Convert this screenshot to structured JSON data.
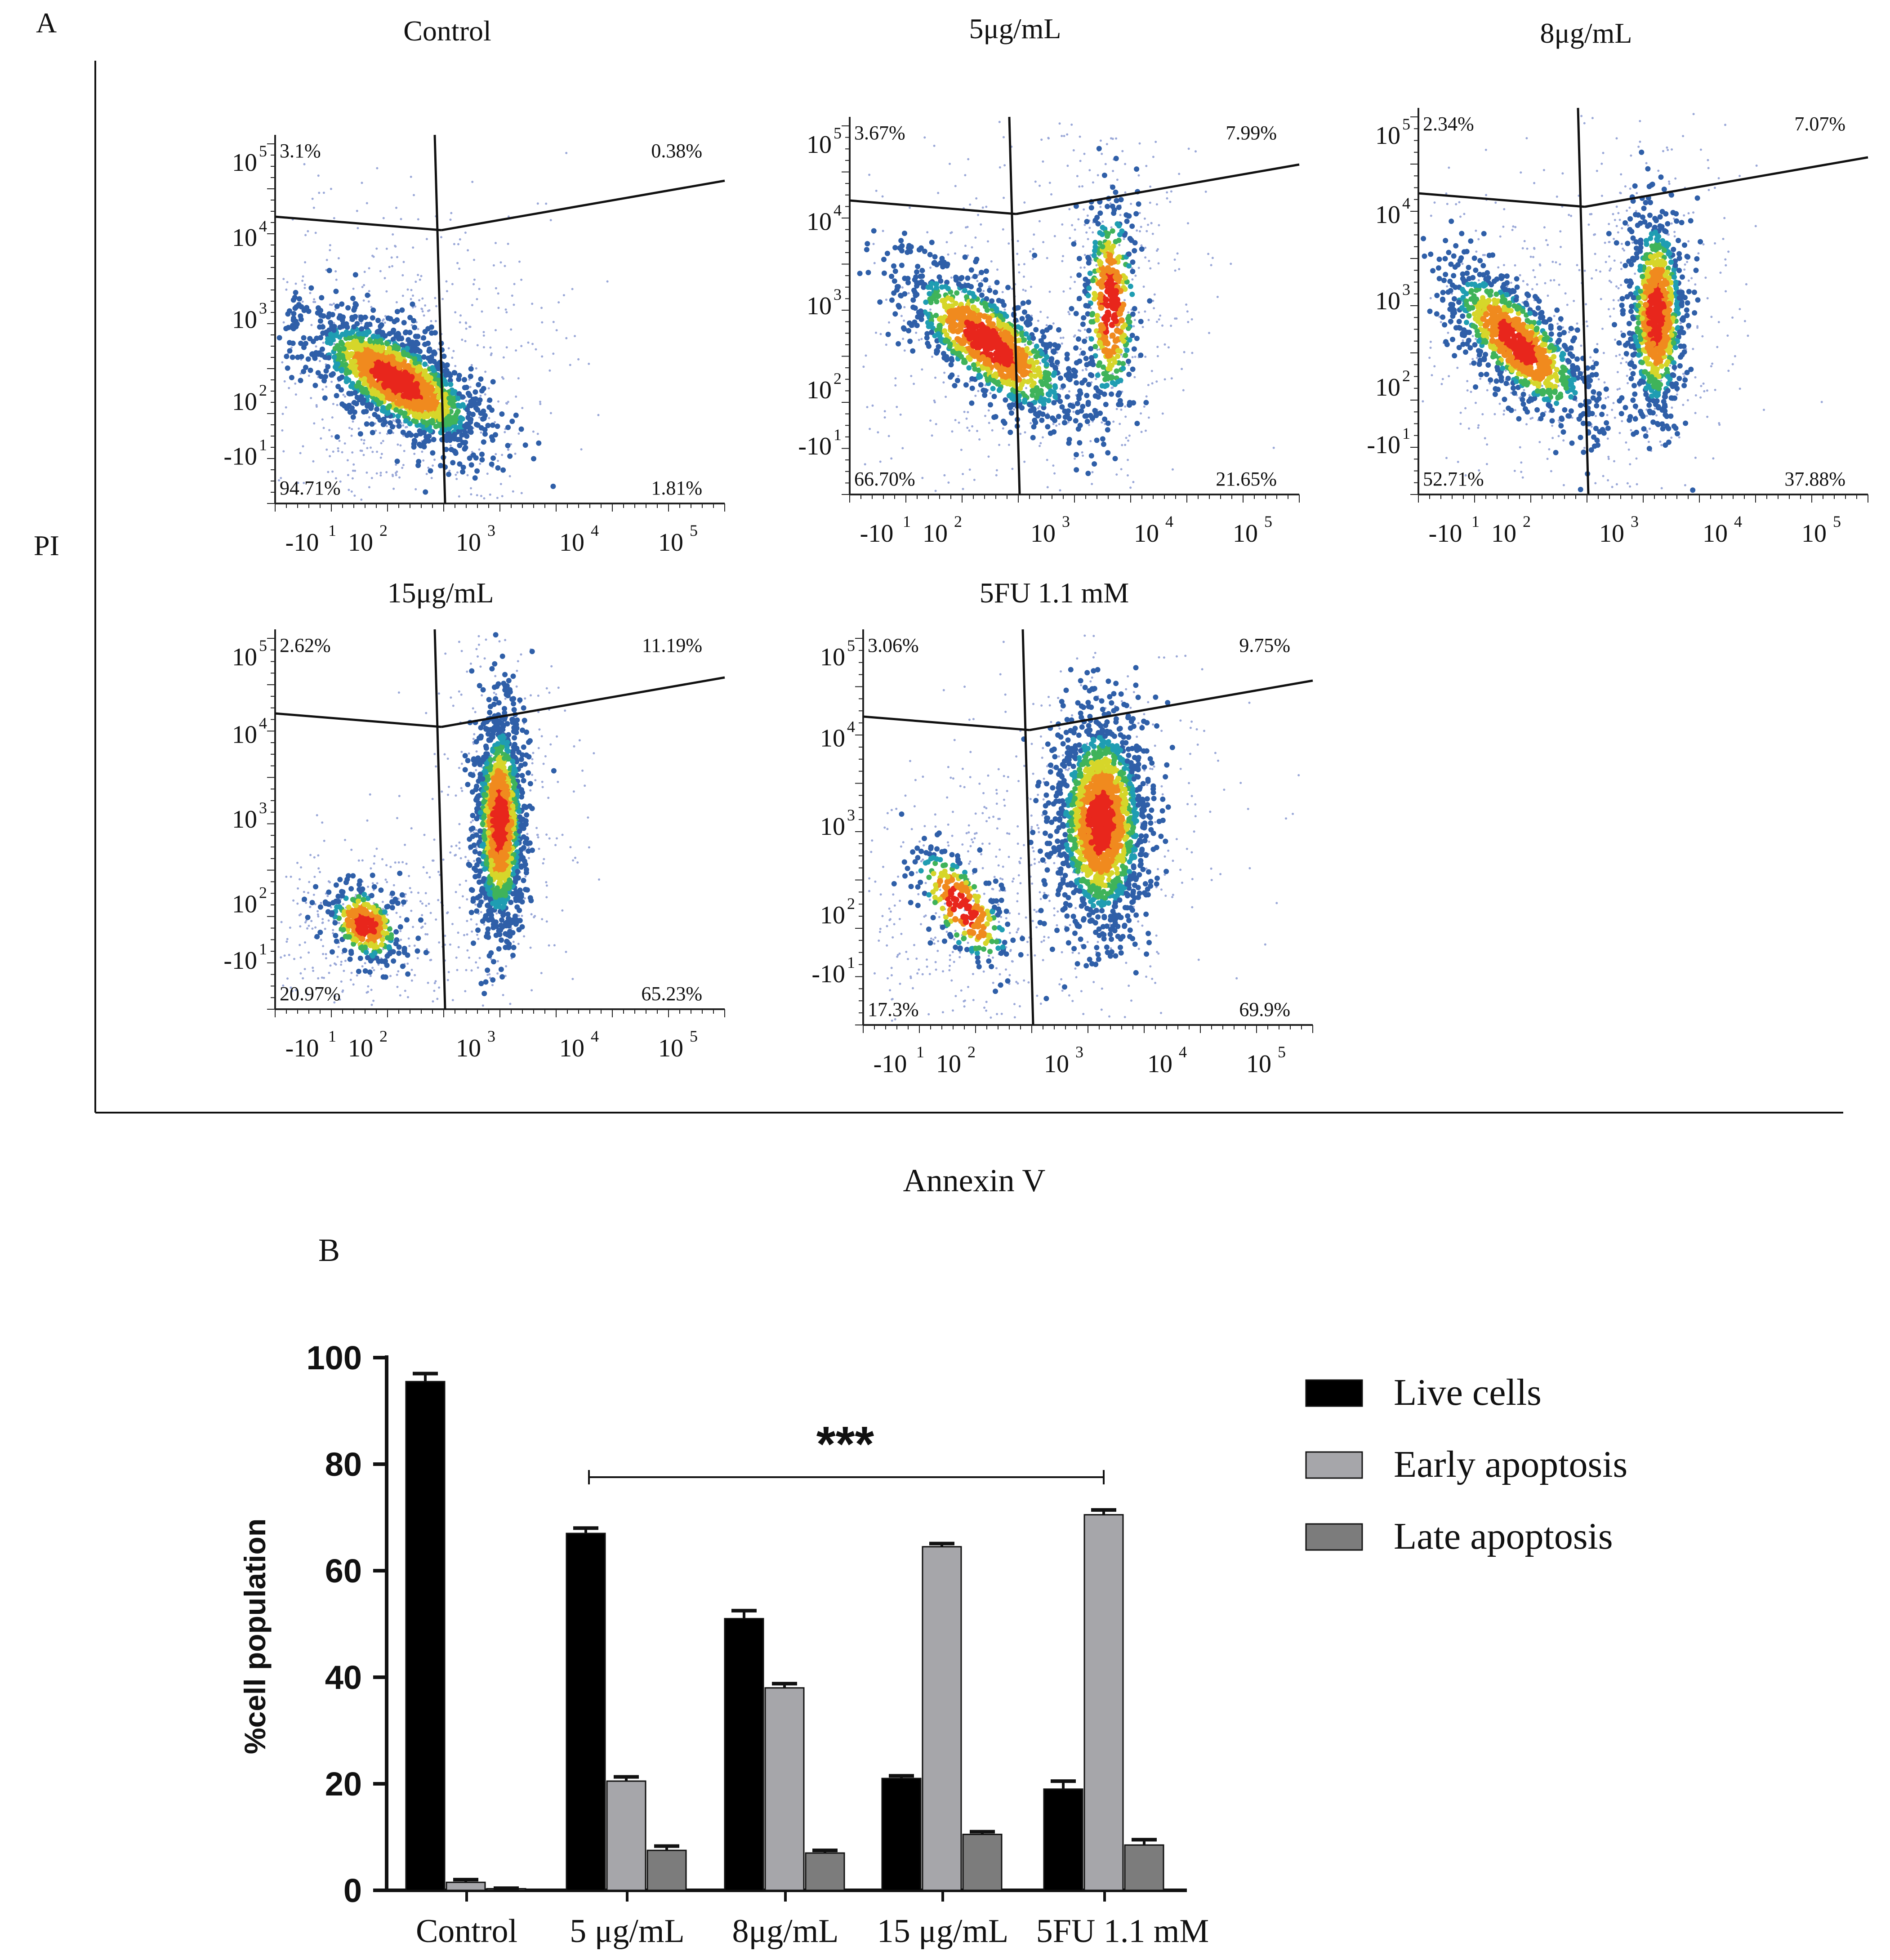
{
  "colors": {
    "ink": "#111111",
    "live": "#000000",
    "early": "#a6a6aa",
    "late": "#7c7c7c",
    "density": [
      "#2f5fa8",
      "#1f9db2",
      "#3fb35a",
      "#d6d62a",
      "#f08a1e",
      "#e8261c"
    ]
  },
  "panel_a": {
    "label": "A",
    "y_axis_label": "PI",
    "x_axis_label": "Annexin V",
    "x_tick_labels": [
      "-10",
      "10",
      "10",
      "10",
      "10"
    ],
    "x_tick_exponents": [
      "1",
      "2",
      "3",
      "4",
      "5"
    ],
    "y_tick_labels": [
      "10",
      "10",
      "10",
      "10",
      "-10"
    ],
    "y_tick_exponents": [
      "5",
      "4",
      "3",
      "2",
      "1"
    ],
    "plots": [
      {
        "title": "Control",
        "ul": "3.1%",
        "ur": "0.38%",
        "ll": "94.71%",
        "lr": "1.81%"
      },
      {
        "title": "5μg/mL",
        "ul": "3.67%",
        "ur": "7.99%",
        "ll": "66.70%",
        "lr": "21.65%"
      },
      {
        "title": "8μg/mL",
        "ul": "2.34%",
        "ur": "7.07%",
        "ll": "52.71%",
        "lr": "37.88%"
      },
      {
        "title": "15μg/mL",
        "ul": "2.62%",
        "ur": "11.19%",
        "ll": "20.97%",
        "lr": "65.23%"
      },
      {
        "title": "5FU 1.1 mM",
        "ul": "3.06%",
        "ur": "9.75%",
        "ll": "17.3%",
        "lr": "69.9%"
      }
    ]
  },
  "panel_b": {
    "label": "B",
    "significance": "***"
  },
  "chart_data": {
    "type": "bar",
    "title": "",
    "xlabel": "",
    "ylabel": "%cell population",
    "ylim": [
      0,
      100
    ],
    "yticks": [
      "0",
      "20",
      "40",
      "60",
      "80",
      "100"
    ],
    "categories": [
      "Control",
      "5 μg/mL",
      "8μg/mL",
      "15 μg/mL",
      "5FU 1.1 mM"
    ],
    "series": [
      {
        "name": "Live cells",
        "values": [
          95.5,
          67,
          51,
          21,
          19
        ],
        "errors": [
          1.5,
          1,
          1.5,
          0.5,
          1.5
        ]
      },
      {
        "name": "Early apoptosis",
        "values": [
          1.5,
          20.5,
          38,
          64.5,
          70.5
        ],
        "errors": [
          0.5,
          0.8,
          0.8,
          0.6,
          0.9
        ]
      },
      {
        "name": "Late apoptosis",
        "values": [
          0.3,
          7.5,
          7,
          10.5,
          8.5
        ],
        "errors": [
          0.1,
          0.8,
          0.5,
          0.5,
          1
        ]
      }
    ],
    "legend": "top-right",
    "annotation": "***"
  }
}
